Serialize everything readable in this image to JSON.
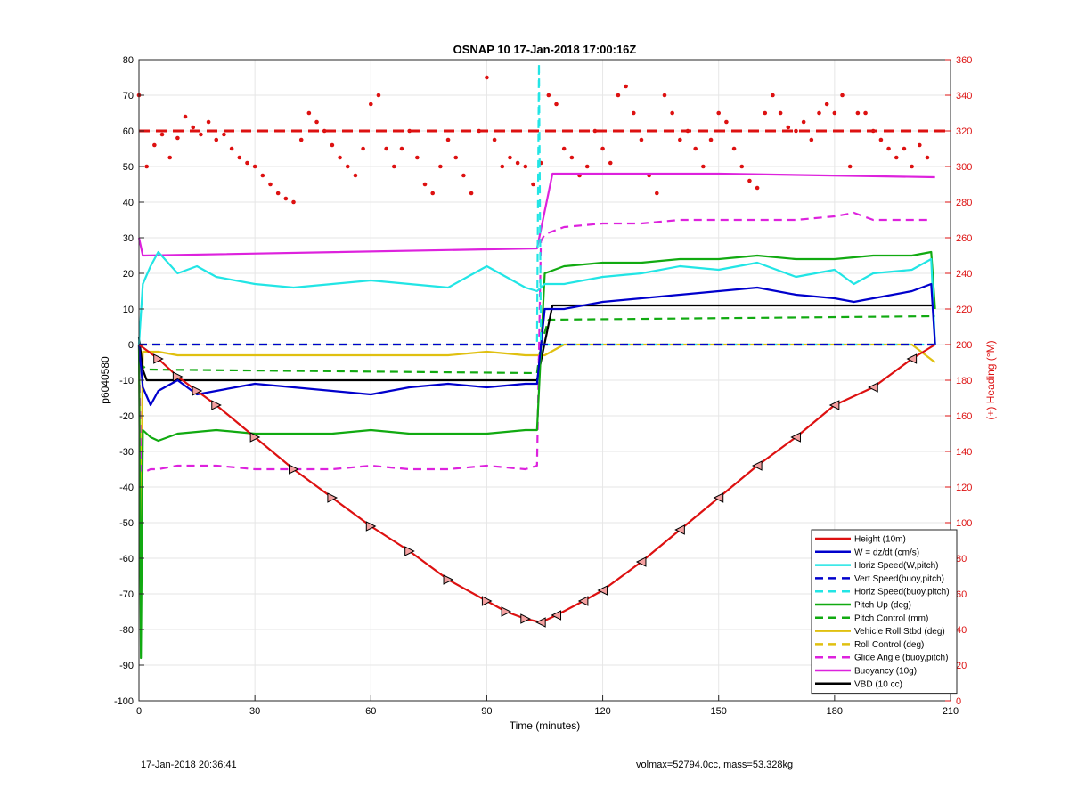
{
  "footer": {
    "left": "17-Jan-2018 20:36:41",
    "right": "volmax=52794.0cc, mass=53.328kg"
  },
  "chart_data": {
    "type": "line",
    "title": "OSNAP 10 17-Jan-2018 17:00:16Z",
    "xlabel": "Time (minutes)",
    "ylabel": "p6040580",
    "y2label": "(+) Heading (°M)",
    "xlim": [
      0,
      210
    ],
    "ylim": [
      -100,
      80
    ],
    "y2lim": [
      0,
      360
    ],
    "xticks": [
      0,
      30,
      60,
      90,
      120,
      150,
      180,
      210
    ],
    "yticks": [
      -100,
      -90,
      -80,
      -70,
      -60,
      -50,
      -40,
      -30,
      -20,
      -10,
      0,
      10,
      20,
      30,
      40,
      50,
      60,
      70,
      80
    ],
    "y2ticks": [
      0,
      20,
      40,
      60,
      80,
      100,
      120,
      140,
      160,
      180,
      200,
      220,
      240,
      260,
      280,
      300,
      320,
      340,
      360
    ],
    "grid": true,
    "legend_position": "bottom-right",
    "series": [
      {
        "name": "Height (10m)",
        "color": "#dd1111",
        "style": "solid",
        "x": [
          0,
          5,
          10,
          15,
          20,
          30,
          40,
          50,
          60,
          70,
          80,
          90,
          95,
          100,
          104,
          108,
          115,
          120,
          130,
          140,
          150,
          160,
          170,
          180,
          190,
          200,
          206
        ],
        "y": [
          0,
          -4,
          -9,
          -13,
          -17,
          -26,
          -35,
          -43,
          -51,
          -58,
          -66,
          -72,
          -75,
          -77,
          -78,
          -76,
          -72,
          -69,
          -61,
          -52,
          -43,
          -34,
          -26,
          -17,
          -12,
          -4,
          0
        ]
      },
      {
        "name": "W = dz/dt (cm/s)",
        "color": "#0000cc",
        "style": "solid",
        "x": [
          0,
          1,
          3,
          5,
          10,
          15,
          20,
          30,
          40,
          50,
          60,
          70,
          80,
          90,
          100,
          103,
          105,
          110,
          120,
          130,
          140,
          150,
          160,
          170,
          180,
          185,
          190,
          200,
          205,
          206
        ],
        "y": [
          0,
          -12,
          -17,
          -13,
          -10,
          -14,
          -13,
          -11,
          -12,
          -13,
          -14,
          -12,
          -11,
          -12,
          -11,
          -11,
          10,
          10,
          12,
          13,
          14,
          15,
          16,
          14,
          13,
          12,
          13,
          15,
          17,
          0
        ]
      },
      {
        "name": "Horiz Speed(W,pitch)",
        "color": "#22e5e5",
        "style": "solid",
        "x": [
          0,
          1,
          3,
          5,
          10,
          15,
          20,
          30,
          40,
          50,
          60,
          70,
          80,
          90,
          95,
          100,
          103,
          105,
          110,
          120,
          130,
          140,
          150,
          160,
          170,
          180,
          185,
          190,
          200,
          205,
          206
        ],
        "y": [
          0,
          17,
          22,
          26,
          20,
          22,
          19,
          17,
          16,
          17,
          18,
          17,
          16,
          22,
          19,
          16,
          15,
          17,
          17,
          19,
          20,
          22,
          21,
          23,
          19,
          21,
          17,
          20,
          21,
          24,
          0
        ]
      },
      {
        "name": "Vert Speed(buoy,pitch)",
        "color": "#0000cc",
        "style": "dashed",
        "x": [
          0,
          206
        ],
        "y": [
          0,
          0
        ]
      },
      {
        "name": "Horiz Speed(buoy,pitch)",
        "color": "#22e5e5",
        "style": "dashed",
        "x": [
          0,
          103,
          103.5,
          104,
          104.5,
          206
        ],
        "y": [
          0,
          0,
          79,
          0,
          0,
          0
        ]
      },
      {
        "name": "Pitch Up (deg)",
        "color": "#11aa11",
        "style": "solid",
        "x": [
          0,
          0.5,
          1,
          3,
          5,
          10,
          20,
          30,
          40,
          50,
          60,
          70,
          80,
          90,
          100,
          103,
          105,
          110,
          120,
          130,
          140,
          150,
          160,
          170,
          180,
          190,
          200,
          205,
          206
        ],
        "y": [
          0,
          -88,
          -24,
          -26,
          -27,
          -25,
          -24,
          -25,
          -25,
          -25,
          -24,
          -25,
          -25,
          -25,
          -24,
          -24,
          20,
          22,
          23,
          23,
          24,
          24,
          25,
          24,
          24,
          25,
          25,
          26,
          10
        ]
      },
      {
        "name": "Pitch Control (mm)",
        "color": "#11aa11",
        "style": "dashed",
        "x": [
          0,
          2,
          103,
          104,
          106,
          206
        ],
        "y": [
          -5,
          -7,
          -8,
          0,
          7,
          8
        ]
      },
      {
        "name": "Vehicle Roll Stbd (deg)",
        "color": "#e0c010",
        "style": "solid",
        "x": [
          0,
          0.5,
          1,
          2,
          5,
          10,
          20,
          30,
          40,
          50,
          60,
          70,
          80,
          90,
          100,
          103,
          105,
          110,
          120,
          130,
          140,
          150,
          160,
          170,
          180,
          190,
          200,
          206
        ],
        "y": [
          0,
          -55,
          -2,
          -2,
          -2,
          -3,
          -3,
          -3,
          -3,
          -3,
          -3,
          -3,
          -3,
          -2,
          -3,
          -3,
          -3,
          0,
          0,
          0,
          0,
          0,
          0,
          0,
          0,
          0,
          0,
          -5
        ]
      },
      {
        "name": "Roll Control (deg)",
        "color": "#e0c010",
        "style": "dashed",
        "x": [
          0,
          103,
          104,
          206
        ],
        "y": [
          0,
          0,
          0,
          0
        ]
      },
      {
        "name": "Glide Angle (buoy,pitch)",
        "color": "#dd22dd",
        "style": "dashed",
        "x": [
          0,
          0.5,
          1,
          3,
          5,
          10,
          20,
          30,
          40,
          50,
          60,
          70,
          80,
          90,
          100,
          103,
          104,
          105,
          110,
          120,
          130,
          140,
          150,
          160,
          170,
          180,
          185,
          190,
          200,
          205
        ],
        "y": [
          0,
          -35,
          -36,
          -35,
          -35,
          -34,
          -34,
          -35,
          -35,
          -35,
          -34,
          -35,
          -35,
          -34,
          -35,
          -34,
          29,
          31,
          33,
          34,
          34,
          35,
          35,
          35,
          35,
          36,
          37,
          35,
          35,
          35
        ]
      },
      {
        "name": "Buoyancy (10g)",
        "color": "#dd22dd",
        "style": "solid",
        "x": [
          0,
          1,
          103,
          107,
          150,
          206
        ],
        "y": [
          30,
          25,
          27,
          48,
          48,
          47
        ]
      },
      {
        "name": "VBD (10 cc)",
        "color": "#000000",
        "style": "solid",
        "x": [
          0,
          1,
          2,
          10,
          103,
          107,
          206
        ],
        "y": [
          2,
          -7,
          -10,
          -10,
          -10,
          11,
          11
        ]
      }
    ],
    "heading": {
      "name": "Heading",
      "color": "#dd1111",
      "axis": "right",
      "reference_y2": 320,
      "x": [
        0,
        2,
        4,
        6,
        8,
        10,
        12,
        14,
        16,
        18,
        20,
        22,
        24,
        26,
        28,
        30,
        32,
        34,
        36,
        38,
        40,
        42,
        44,
        46,
        48,
        50,
        52,
        54,
        56,
        58,
        60,
        62,
        64,
        66,
        68,
        70,
        72,
        74,
        76,
        78,
        80,
        82,
        84,
        86,
        88,
        90,
        92,
        94,
        96,
        98,
        100,
        102,
        104,
        106,
        108,
        110,
        112,
        114,
        116,
        118,
        120,
        122,
        124,
        126,
        128,
        130,
        132,
        134,
        136,
        138,
        140,
        142,
        144,
        146,
        148,
        150,
        152,
        154,
        156,
        158,
        160,
        162,
        164,
        166,
        168,
        170,
        172,
        174,
        176,
        178,
        180,
        182,
        184,
        186,
        188,
        190,
        192,
        194,
        196,
        198,
        200,
        202,
        204
      ],
      "y": [
        340,
        300,
        312,
        318,
        305,
        316,
        328,
        322,
        318,
        325,
        315,
        318,
        310,
        305,
        302,
        300,
        295,
        290,
        285,
        282,
        280,
        315,
        330,
        325,
        320,
        312,
        305,
        300,
        295,
        310,
        335,
        340,
        310,
        300,
        310,
        320,
        305,
        290,
        285,
        300,
        315,
        305,
        295,
        285,
        320,
        350,
        315,
        300,
        305,
        302,
        300,
        290,
        302,
        340,
        335,
        310,
        305,
        295,
        300,
        320,
        310,
        302,
        340,
        345,
        330,
        315,
        295,
        285,
        340,
        330,
        315,
        320,
        310,
        300,
        315,
        330,
        325,
        310,
        300,
        292,
        288,
        330,
        340,
        330,
        322,
        320,
        325,
        315,
        330,
        335,
        330,
        340,
        300,
        330,
        330,
        320,
        315,
        310,
        305,
        310,
        300,
        312,
        305
      ]
    }
  }
}
